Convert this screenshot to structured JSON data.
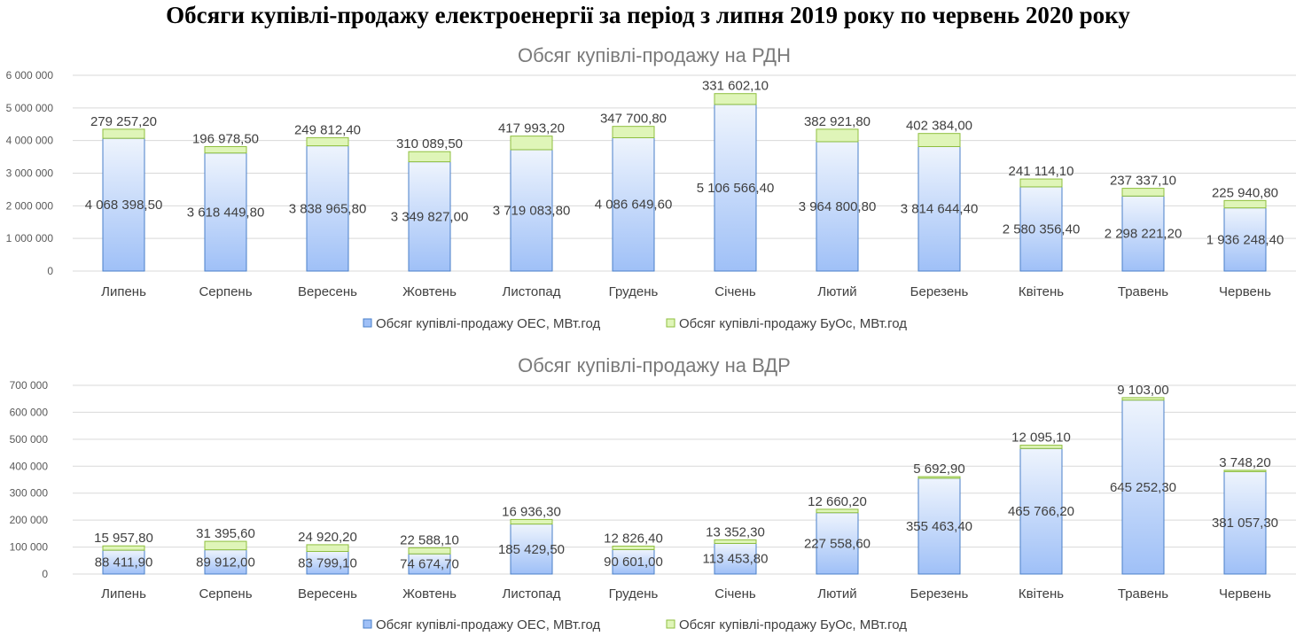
{
  "title": "Обсяги купівлі-продажу електроенергії за період з липня 2019 року по червень 2020 року",
  "colors": {
    "oes": "#9fc0f7",
    "oes_top": "#eef4fd",
    "oes_stroke": "#4a7fc9",
    "buos": "#dff5b8",
    "buos_stroke": "#8fbf3f"
  },
  "chart_data": [
    {
      "type": "bar",
      "stacked": true,
      "title": "Обсяг купівлі-продажу на РДН",
      "categories": [
        "Липень",
        "Серпень",
        "Вересень",
        "Жовтень",
        "Листопад",
        "Грудень",
        "Січень",
        "Лютий",
        "Березень",
        "Квітень",
        "Травень",
        "Червень"
      ],
      "ylim": [
        0,
        6000000
      ],
      "yticks": [
        0,
        1000000,
        2000000,
        3000000,
        4000000,
        5000000,
        6000000
      ],
      "ytick_labels": [
        "0",
        "1 000 000",
        "2 000 000",
        "3 000 000",
        "4 000 000",
        "5 000 000",
        "6 000 000"
      ],
      "grid": true,
      "legend_position": "bottom",
      "series": [
        {
          "name": "Обсяг купівлі-продажу ОЕС, МВт.год",
          "values": [
            4068398.5,
            3618449.8,
            3838965.8,
            3349827.0,
            3719083.8,
            4086649.6,
            5106566.4,
            3964800.8,
            3814644.4,
            2580356.4,
            2298221.2,
            1936248.4
          ],
          "labels": [
            "4 068 398,50",
            "3 618 449,80",
            "3 838 965,80",
            "3 349 827,00",
            "3 719 083,80",
            "4 086 649,60",
            "5 106 566,40",
            "3 964 800,80",
            "3 814 644,40",
            "2 580 356,40",
            "2 298 221,20",
            "1 936 248,40"
          ]
        },
        {
          "name": "Обсяг купівлі-продажу БуОс, МВт.год",
          "values": [
            279257.2,
            196978.5,
            249812.4,
            310089.5,
            417993.2,
            347700.8,
            331602.1,
            382921.8,
            402384.0,
            241114.1,
            237337.1,
            225940.8
          ],
          "labels": [
            "279 257,20",
            "196 978,50",
            "249 812,40",
            "310 089,50",
            "417 993,20",
            "347 700,80",
            "331 602,10",
            "382 921,80",
            "402 384,00",
            "241 114,10",
            "237 337,10",
            "225 940,80"
          ]
        }
      ]
    },
    {
      "type": "bar",
      "stacked": true,
      "title": "Обсяг купівлі-продажу на ВДР",
      "categories": [
        "Липень",
        "Серпень",
        "Вересень",
        "Жовтень",
        "Листопад",
        "Грудень",
        "Січень",
        "Лютий",
        "Березень",
        "Квітень",
        "Травень",
        "Червень"
      ],
      "ylim": [
        0,
        700000
      ],
      "yticks": [
        0,
        100000,
        200000,
        300000,
        400000,
        500000,
        600000,
        700000
      ],
      "ytick_labels": [
        "0",
        "100 000",
        "200 000",
        "300 000",
        "400 000",
        "500 000",
        "600 000",
        "700 000"
      ],
      "grid": true,
      "legend_position": "bottom",
      "series": [
        {
          "name": "Обсяг купівлі-продажу ОЕС, МВт.год",
          "values": [
            88411.9,
            89912.0,
            83799.1,
            74674.7,
            185429.5,
            90601.0,
            113453.8,
            227558.6,
            355463.4,
            465766.2,
            645252.3,
            381057.3
          ],
          "labels": [
            "88 411,90",
            "89 912,00",
            "83 799,10",
            "74 674,70",
            "185 429,50",
            "90 601,00",
            "113 453,80",
            "227 558,60",
            "355 463,40",
            "465 766,20",
            "645 252,30",
            "381 057,30"
          ]
        },
        {
          "name": "Обсяг купівлі-продажу БуОс, МВт.год",
          "values": [
            15957.8,
            31395.6,
            24920.2,
            22588.1,
            16936.3,
            12826.4,
            13352.3,
            12660.2,
            5692.9,
            12095.1,
            9103.0,
            3748.2
          ],
          "labels": [
            "15 957,80",
            "31 395,60",
            "24 920,20",
            "22 588,10",
            "16 936,30",
            "12 826,40",
            "13 352,30",
            "12 660,20",
            "5 692,90",
            "12 095,10",
            "9 103,00",
            "3 748,20"
          ]
        }
      ]
    }
  ]
}
